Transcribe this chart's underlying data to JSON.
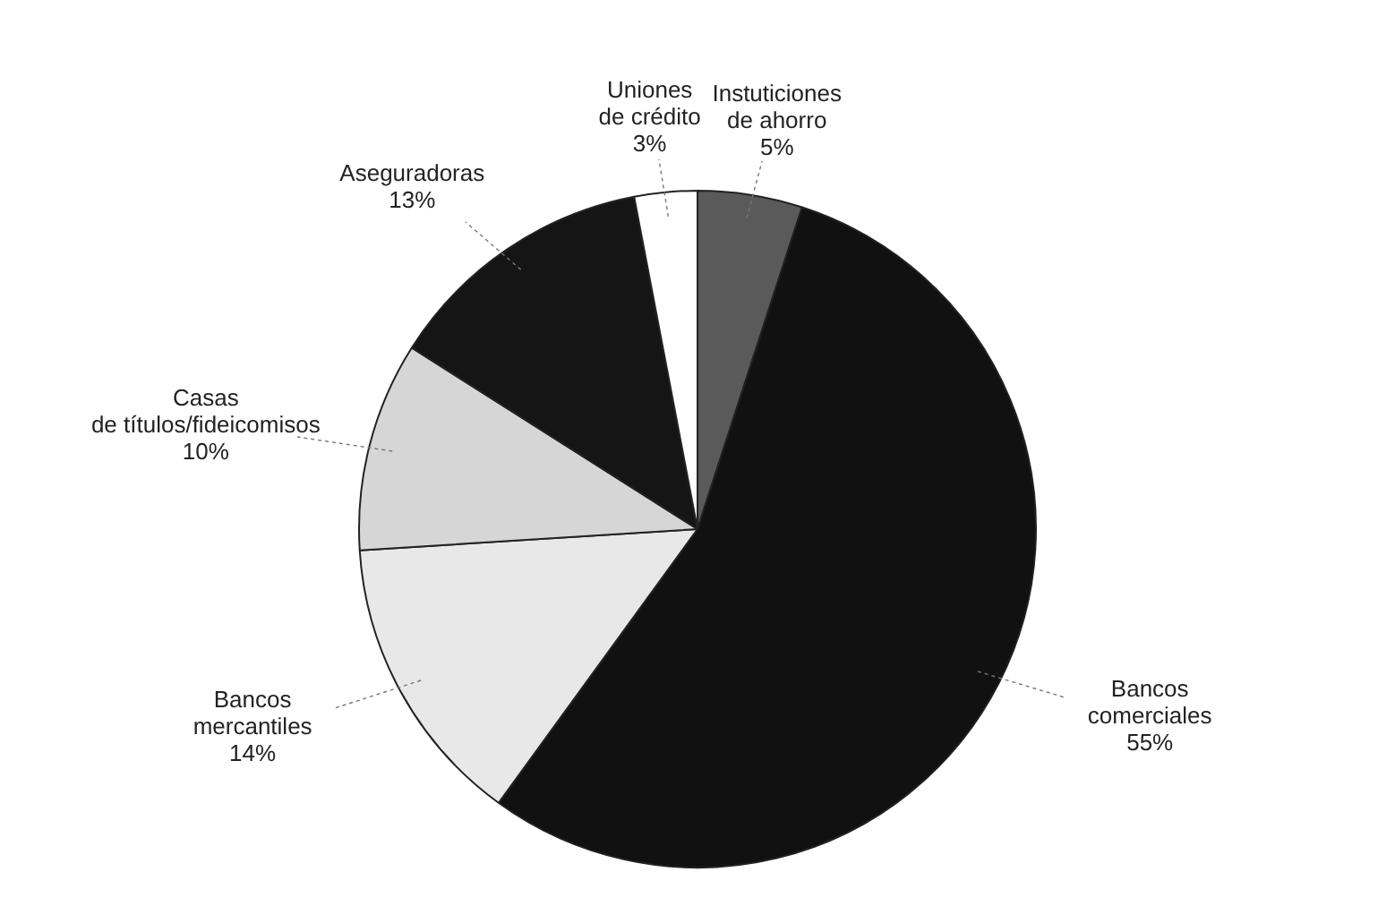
{
  "chart_data": {
    "type": "pie",
    "categories": [
      "Instuticiones\nde ahorro",
      "Bancos\ncomerciales",
      "Bancos\nmercantiles",
      "Casas\nde títulos/fideicomisos",
      "Aseguradoras",
      "Uniones\nde crédito"
    ],
    "values": [
      5,
      55,
      14,
      10,
      13,
      3
    ],
    "value_labels": [
      "5%",
      "55%",
      "14%",
      "10%",
      "13%",
      "3%"
    ],
    "colors": [
      "#5a5a5a",
      "#111111",
      "#e8e8e8",
      "#d6d6d6",
      "#151515",
      "#ffffff"
    ],
    "legend": false
  }
}
